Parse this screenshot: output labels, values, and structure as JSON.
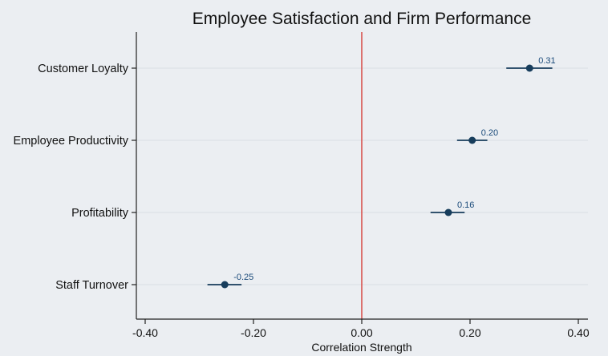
{
  "chart_data": {
    "type": "scatter",
    "title": "Employee Satisfaction and Firm Performance",
    "xlabel": "Correlation Strength",
    "ylabel": "",
    "xlim": [
      -0.42,
      0.42
    ],
    "x_ticks": [
      -0.4,
      -0.2,
      0.0,
      0.2,
      0.4
    ],
    "x_tick_labels": [
      "-0.40",
      "-0.20",
      "0.00",
      "0.20",
      "0.40"
    ],
    "reference_line": {
      "x": 0.0,
      "color": "#d9534f"
    },
    "grid": true,
    "marker_color": "#173d5c",
    "categories": [
      "Customer Loyalty",
      "Employee Productivity",
      "Profitability",
      "Staff Turnover"
    ],
    "values": [
      0.31,
      0.204,
      0.16,
      -0.253
    ],
    "ci_low": [
      0.267,
      0.176,
      0.127,
      -0.285
    ],
    "ci_high": [
      0.352,
      0.232,
      0.19,
      -0.222
    ],
    "value_labels": [
      "0.31",
      "0.20",
      "0.16",
      "-0.25"
    ]
  }
}
